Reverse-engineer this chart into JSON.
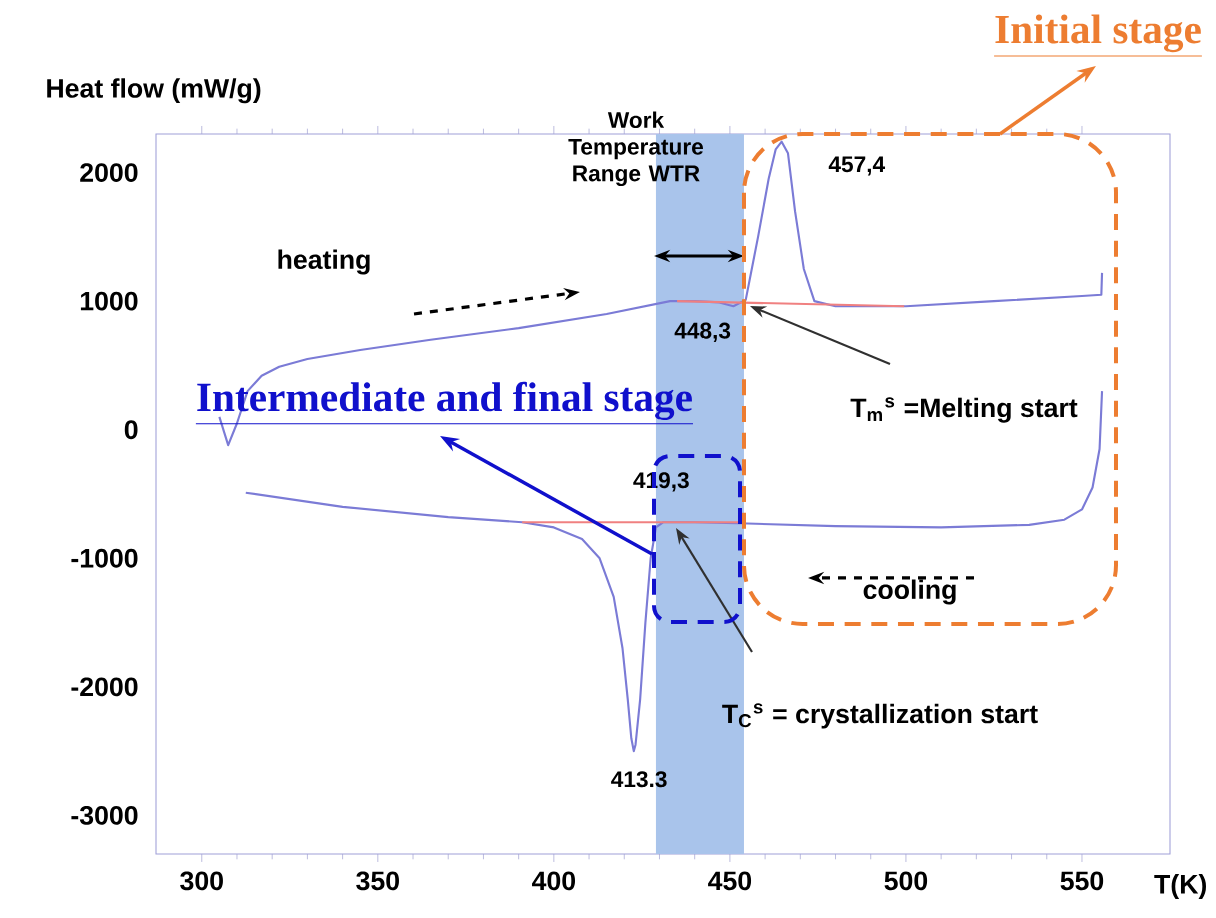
{
  "chart_data": {
    "type": "line",
    "xlabel": "T(K)",
    "ylabel": "Heat flow (mW/g)",
    "xlim": [
      287,
      575
    ],
    "ylim": [
      -3300,
      2300
    ],
    "xticks": [
      300,
      350,
      400,
      450,
      500,
      550
    ],
    "yticks": [
      -3000,
      -2000,
      -1000,
      0,
      1000,
      2000
    ],
    "grid": false,
    "marker": "none",
    "line_style": "solid",
    "series": [
      {
        "color": "#7b7bd6",
        "x": [
          305,
          307.5,
          310,
          313,
          317,
          322,
          330,
          345,
          365,
          390,
          415,
          433,
          440,
          447,
          451,
          454.5,
          458,
          461,
          463,
          464.7,
          466.5,
          468.5,
          471,
          474,
          480,
          500,
          525,
          550,
          555.5,
          555.7
        ],
        "values": [
          100,
          -120,
          50,
          300,
          420,
          490,
          550,
          620,
          700,
          790,
          900,
          1000,
          1000,
          990,
          960,
          1010,
          1500,
          1950,
          2180,
          2240,
          2150,
          1700,
          1250,
          1000,
          960,
          960,
          1000,
          1040,
          1050,
          1220
        ]
      },
      {
        "color": "#7b7bd6",
        "x": [
          555.7,
          555,
          553,
          550,
          545,
          535,
          510,
          480,
          455,
          440,
          431,
          429,
          427.5,
          426,
          424.5,
          423.2,
          422.7,
          422,
          421,
          419.5,
          417,
          413,
          408,
          400,
          391,
          370,
          340,
          312.5
        ],
        "values": [
          300,
          -150,
          -450,
          -620,
          -700,
          -740,
          -760,
          -750,
          -730,
          -720,
          -720,
          -760,
          -1000,
          -1500,
          -2100,
          -2450,
          -2500,
          -2400,
          -2100,
          -1700,
          -1300,
          -1000,
          -850,
          -760,
          -720,
          -680,
          -600,
          -490
        ]
      },
      {
        "color": "#f08080",
        "x": [
          435,
          499.5
        ],
        "values": [
          1000,
          960
        ]
      },
      {
        "color": "#f08080",
        "x": [
          391,
          454
        ],
        "values": [
          -720,
          -720
        ]
      }
    ],
    "bands": [
      {
        "axis": "x",
        "from": 429,
        "to": 454,
        "label": "Work Temperature Range WTR",
        "color": "#a9c4eb"
      }
    ],
    "annotations": [
      {
        "text": "457,4",
        "x": 464.7,
        "y": 2240
      },
      {
        "text": "448,3",
        "x": 454.5,
        "y": 1010
      },
      {
        "text": "419,3",
        "x": 429,
        "y": -720
      },
      {
        "text": "413.3",
        "x": 422.7,
        "y": -2500
      },
      "heating",
      "cooling",
      "T$_{m}$$^{s}$ =Melting start",
      "T$_{C}$$^{s}$ = crystallization start",
      "Initial stage",
      {
        "text": "Intermediate and final stage",
        "x": 428,
        "y": -1000
      }
    ]
  }
}
